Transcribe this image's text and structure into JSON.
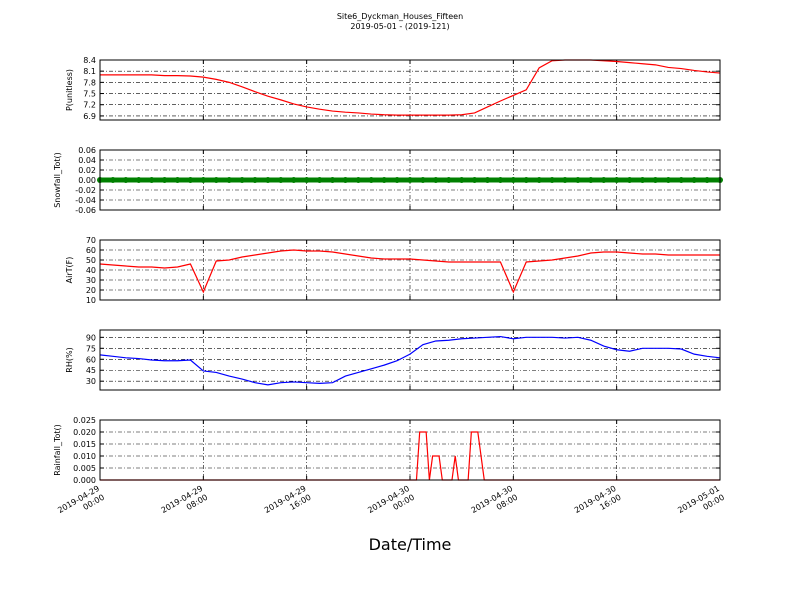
{
  "figure": {
    "title": "Site6_Dyckman_Houses_Fifteen",
    "subtitle": "2019-05-01 - (2019-121)",
    "xlabel": "Date/Time"
  },
  "chart_data": [
    {
      "type": "line",
      "ylabel": "P(unitless)",
      "color": "#ff0000",
      "grid": true,
      "xlim": [
        "2019-04-29 00:00",
        "2019-05-01 00:00"
      ],
      "xticks": [
        "2019-04-29 00:00",
        "2019-04-29 08:00",
        "2019-04-29 16:00",
        "2019-04-30 00:00",
        "2019-04-30 08:00",
        "2019-04-30 16:00",
        "2019-05-01 00:00"
      ],
      "ylim": [
        6.79,
        8.4
      ],
      "yticks": [
        6.9,
        7.2,
        7.5,
        7.8,
        8.1,
        8.4
      ],
      "x": [
        "2019-04-29 00:00",
        "2019-04-29 01:00",
        "2019-04-29 02:00",
        "2019-04-29 03:00",
        "2019-04-29 04:00",
        "2019-04-29 05:00",
        "2019-04-29 06:00",
        "2019-04-29 07:00",
        "2019-04-29 08:00",
        "2019-04-29 09:00",
        "2019-04-29 10:00",
        "2019-04-29 11:00",
        "2019-04-29 12:00",
        "2019-04-29 13:00",
        "2019-04-29 14:00",
        "2019-04-29 15:00",
        "2019-04-29 16:00",
        "2019-04-29 17:00",
        "2019-04-29 18:00",
        "2019-04-29 19:00",
        "2019-04-29 20:00",
        "2019-04-29 21:00",
        "2019-04-29 22:00",
        "2019-04-29 23:00",
        "2019-04-30 00:00",
        "2019-04-30 01:00",
        "2019-04-30 02:00",
        "2019-04-30 03:00",
        "2019-04-30 04:00",
        "2019-04-30 05:00",
        "2019-04-30 06:00",
        "2019-04-30 07:00",
        "2019-04-30 08:00",
        "2019-04-30 09:00",
        "2019-04-30 10:00",
        "2019-04-30 11:00",
        "2019-04-30 12:00",
        "2019-04-30 13:00",
        "2019-04-30 14:00",
        "2019-04-30 15:00",
        "2019-04-30 16:00",
        "2019-04-30 17:00",
        "2019-04-30 18:00",
        "2019-04-30 19:00",
        "2019-04-30 20:00",
        "2019-04-30 21:00",
        "2019-04-30 22:00",
        "2019-04-30 23:00",
        "2019-05-01 00:00"
      ],
      "values": [
        8.0,
        8.0,
        8.0,
        8.0,
        8.0,
        7.98,
        7.98,
        7.97,
        7.94,
        7.88,
        7.8,
        7.68,
        7.55,
        7.43,
        7.33,
        7.22,
        7.14,
        7.08,
        7.03,
        7.0,
        6.98,
        6.95,
        6.93,
        6.92,
        6.92,
        6.92,
        6.92,
        6.92,
        6.93,
        6.98,
        7.14,
        7.3,
        7.45,
        7.6,
        8.19,
        8.38,
        8.4,
        8.4,
        8.4,
        8.38,
        8.36,
        8.33,
        8.3,
        8.27,
        8.2,
        8.17,
        8.12,
        8.08,
        8.05
      ]
    },
    {
      "type": "scatter",
      "ylabel": "Snowfall_Tot()",
      "color": "#008000",
      "grid": true,
      "xlim": [
        "2019-04-29 00:00",
        "2019-05-01 00:00"
      ],
      "xticks": [
        "2019-04-29 00:00",
        "2019-04-29 08:00",
        "2019-04-29 16:00",
        "2019-04-30 00:00",
        "2019-04-30 08:00",
        "2019-04-30 16:00",
        "2019-05-01 00:00"
      ],
      "ylim": [
        -0.06,
        0.06
      ],
      "yticks": [
        -0.06,
        -0.04,
        -0.02,
        {
          "value": 0,
          "label": "0.00"
        },
        0.02,
        0.04,
        0.06
      ],
      "x": [
        "2019-04-29 00:00",
        "2019-04-29 01:00",
        "2019-04-29 02:00",
        "2019-04-29 03:00",
        "2019-04-29 04:00",
        "2019-04-29 05:00",
        "2019-04-29 06:00",
        "2019-04-29 07:00",
        "2019-04-29 08:00",
        "2019-04-29 09:00",
        "2019-04-29 10:00",
        "2019-04-29 11:00",
        "2019-04-29 12:00",
        "2019-04-29 13:00",
        "2019-04-29 14:00",
        "2019-04-29 15:00",
        "2019-04-29 16:00",
        "2019-04-29 17:00",
        "2019-04-29 18:00",
        "2019-04-29 19:00",
        "2019-04-29 20:00",
        "2019-04-29 21:00",
        "2019-04-29 22:00",
        "2019-04-29 23:00",
        "2019-04-30 00:00",
        "2019-04-30 01:00",
        "2019-04-30 02:00",
        "2019-04-30 03:00",
        "2019-04-30 04:00",
        "2019-04-30 05:00",
        "2019-04-30 06:00",
        "2019-04-30 07:00",
        "2019-04-30 08:00",
        "2019-04-30 09:00",
        "2019-04-30 10:00",
        "2019-04-30 11:00",
        "2019-04-30 12:00",
        "2019-04-30 13:00",
        "2019-04-30 14:00",
        "2019-04-30 15:00",
        "2019-04-30 16:00",
        "2019-04-30 17:00",
        "2019-04-30 18:00",
        "2019-04-30 19:00",
        "2019-04-30 20:00",
        "2019-04-30 21:00",
        "2019-04-30 22:00",
        "2019-04-30 23:00",
        "2019-05-01 00:00"
      ],
      "values": [
        0,
        0,
        0,
        0,
        0,
        0,
        0,
        0,
        0,
        0,
        0,
        0,
        0,
        0,
        0,
        0,
        0,
        0,
        0,
        0,
        0,
        0,
        0,
        0,
        0,
        0,
        0,
        0,
        0,
        0,
        0,
        0,
        0,
        0,
        0,
        0,
        0,
        0,
        0,
        0,
        0,
        0,
        0,
        0,
        0,
        0,
        0,
        0,
        0
      ]
    },
    {
      "type": "line",
      "ylabel": "AirT(F)",
      "color": "#ff0000",
      "grid": true,
      "xlim": [
        "2019-04-29 00:00",
        "2019-05-01 00:00"
      ],
      "xticks": [
        "2019-04-29 00:00",
        "2019-04-29 08:00",
        "2019-04-29 16:00",
        "2019-04-30 00:00",
        "2019-04-30 08:00",
        "2019-04-30 16:00",
        "2019-05-01 00:00"
      ],
      "ylim": [
        10,
        70
      ],
      "yticks": [
        10,
        20,
        30,
        40,
        50,
        60,
        70
      ],
      "x": [
        "2019-04-29 00:00",
        "2019-04-29 01:00",
        "2019-04-29 02:00",
        "2019-04-29 03:00",
        "2019-04-29 04:00",
        "2019-04-29 05:00",
        "2019-04-29 06:00",
        "2019-04-29 07:00",
        "2019-04-29 08:00",
        "2019-04-29 09:00",
        "2019-04-29 10:00",
        "2019-04-29 11:00",
        "2019-04-29 12:00",
        "2019-04-29 13:00",
        "2019-04-29 14:00",
        "2019-04-29 15:00",
        "2019-04-29 16:00",
        "2019-04-29 17:00",
        "2019-04-29 18:00",
        "2019-04-29 19:00",
        "2019-04-29 20:00",
        "2019-04-29 21:00",
        "2019-04-29 22:00",
        "2019-04-29 23:00",
        "2019-04-30 00:00",
        "2019-04-30 01:00",
        "2019-04-30 02:00",
        "2019-04-30 03:00",
        "2019-04-30 04:00",
        "2019-04-30 05:00",
        "2019-04-30 06:00",
        "2019-04-30 07:00",
        "2019-04-30 08:00",
        "2019-04-30 09:00",
        "2019-04-30 10:00",
        "2019-04-30 11:00",
        "2019-04-30 12:00",
        "2019-04-30 13:00",
        "2019-04-30 14:00",
        "2019-04-30 15:00",
        "2019-04-30 16:00",
        "2019-04-30 17:00",
        "2019-04-30 18:00",
        "2019-04-30 19:00",
        "2019-04-30 20:00",
        "2019-04-30 21:00",
        "2019-04-30 22:00",
        "2019-04-30 23:00",
        "2019-05-01 00:00"
      ],
      "values": [
        46,
        45,
        44,
        43,
        43,
        42,
        43,
        46,
        18,
        49,
        50,
        53,
        55,
        57,
        59,
        60,
        59,
        59,
        58,
        56,
        54,
        52,
        51,
        51,
        51,
        50,
        49,
        48,
        48,
        48,
        48,
        48,
        18,
        48,
        49,
        50,
        52,
        54,
        57,
        58,
        58,
        57,
        56,
        56,
        55,
        55,
        55,
        55,
        55
      ]
    },
    {
      "type": "line",
      "ylabel": "RH(%)",
      "color": "#0000ff",
      "grid": true,
      "xlim": [
        "2019-04-29 00:00",
        "2019-05-01 00:00"
      ],
      "xticks": [
        "2019-04-29 00:00",
        "2019-04-29 08:00",
        "2019-04-29 16:00",
        "2019-04-30 00:00",
        "2019-04-30 08:00",
        "2019-04-30 16:00",
        "2019-05-01 00:00"
      ],
      "ylim": [
        18,
        100
      ],
      "yticks": [
        30,
        45,
        60,
        75,
        90
      ],
      "x": [
        "2019-04-29 00:00",
        "2019-04-29 01:00",
        "2019-04-29 02:00",
        "2019-04-29 03:00",
        "2019-04-29 04:00",
        "2019-04-29 05:00",
        "2019-04-29 06:00",
        "2019-04-29 07:00",
        "2019-04-29 08:00",
        "2019-04-29 09:00",
        "2019-04-29 10:00",
        "2019-04-29 11:00",
        "2019-04-29 12:00",
        "2019-04-29 13:00",
        "2019-04-29 14:00",
        "2019-04-29 15:00",
        "2019-04-29 16:00",
        "2019-04-29 17:00",
        "2019-04-29 18:00",
        "2019-04-29 19:00",
        "2019-04-29 20:00",
        "2019-04-29 21:00",
        "2019-04-29 22:00",
        "2019-04-29 23:00",
        "2019-04-30 00:00",
        "2019-04-30 01:00",
        "2019-04-30 02:00",
        "2019-04-30 03:00",
        "2019-04-30 04:00",
        "2019-04-30 05:00",
        "2019-04-30 06:00",
        "2019-04-30 07:00",
        "2019-04-30 08:00",
        "2019-04-30 09:00",
        "2019-04-30 10:00",
        "2019-04-30 11:00",
        "2019-04-30 12:00",
        "2019-04-30 13:00",
        "2019-04-30 14:00",
        "2019-04-30 15:00",
        "2019-04-30 16:00",
        "2019-04-30 17:00",
        "2019-04-30 18:00",
        "2019-04-30 19:00",
        "2019-04-30 20:00",
        "2019-04-30 21:00",
        "2019-04-30 22:00",
        "2019-04-30 23:00",
        "2019-05-01 00:00"
      ],
      "values": [
        66,
        64,
        62,
        61,
        59,
        58,
        58,
        59,
        44,
        42,
        37,
        33,
        28,
        25,
        28,
        29,
        28,
        27,
        28,
        37,
        42,
        47,
        52,
        58,
        67,
        80,
        85,
        86,
        88,
        89,
        90,
        91,
        88,
        90,
        90,
        90,
        89,
        90,
        86,
        78,
        73,
        71,
        75,
        75,
        75,
        74,
        67,
        64,
        62
      ]
    },
    {
      "type": "line",
      "ylabel": "Rainfall_Tot()",
      "color": "#ff0000",
      "grid": true,
      "xlim": [
        "2019-04-29 00:00",
        "2019-05-01 00:00"
      ],
      "xticks": [
        {
          "value": "2019-04-29 00:00",
          "label": "2019-04-29\n00:00"
        },
        {
          "value": "2019-04-29 08:00",
          "label": "2019-04-29\n08:00"
        },
        {
          "value": "2019-04-29 16:00",
          "label": "2019-04-29\n16:00"
        },
        {
          "value": "2019-04-30 00:00",
          "label": "2019-04-30\n00:00"
        },
        {
          "value": "2019-04-30 08:00",
          "label": "2019-04-30\n08:00"
        },
        {
          "value": "2019-04-30 16:00",
          "label": "2019-04-30\n16:00"
        },
        {
          "value": "2019-05-01 00:00",
          "label": "2019-05-01\n00:00"
        }
      ],
      "ylim": [
        0,
        0.025
      ],
      "yticks": [
        {
          "value": 0,
          "label": "0.000"
        },
        0.005,
        {
          "value": 0.01,
          "label": "0.010"
        },
        0.015,
        {
          "value": 0.02,
          "label": "0.020"
        },
        0.025
      ],
      "x": [
        "2019-04-29 00:00",
        "2019-04-30 00:30",
        "2019-04-30 00:45",
        "2019-04-30 01:15",
        "2019-04-30 01:30",
        "2019-04-30 01:45",
        "2019-04-30 02:15",
        "2019-04-30 02:30",
        "2019-04-30 03:15",
        "2019-04-30 03:30",
        "2019-04-30 03:45",
        "2019-04-30 04:30",
        "2019-04-30 04:45",
        "2019-04-30 05:15",
        "2019-04-30 05:45",
        "2019-05-01 00:00"
      ],
      "values": [
        0,
        0,
        0.02,
        0.02,
        0,
        0.01,
        0.01,
        0,
        0,
        0.01,
        0,
        0,
        0.02,
        0.02,
        0,
        0
      ]
    }
  ]
}
